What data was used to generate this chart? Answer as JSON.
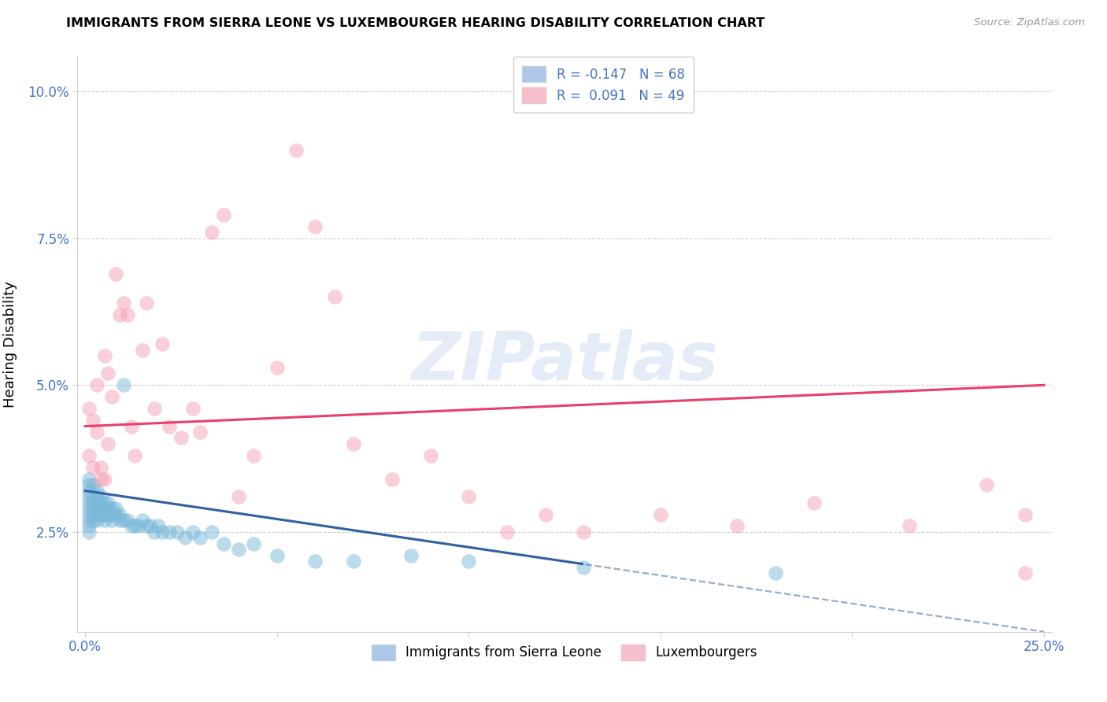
{
  "title": "IMMIGRANTS FROM SIERRA LEONE VS LUXEMBOURGER HEARING DISABILITY CORRELATION CHART",
  "source": "Source: ZipAtlas.com",
  "ylabel": "Hearing Disability",
  "xlim": [
    -0.002,
    0.252
  ],
  "ylim": [
    0.008,
    0.106
  ],
  "yticks": [
    0.025,
    0.05,
    0.075,
    0.1
  ],
  "ytick_labels": [
    "2.5%",
    "5.0%",
    "7.5%",
    "10.0%"
  ],
  "xticks": [
    0.0,
    0.05,
    0.1,
    0.15,
    0.2,
    0.25
  ],
  "xtick_labels": [
    "0.0%",
    "",
    "",
    "",
    "",
    "25.0%"
  ],
  "blue_color": "#7ab8d9",
  "pink_color": "#f4a0b5",
  "blue_line_color": "#3060a0",
  "pink_line_color": "#e8406a",
  "axis_label_color": "#4472c4",
  "r_blue_text": "R = -0.147",
  "n_blue_text": "N = 68",
  "r_pink_text": "R =  0.091",
  "n_pink_text": "N = 49",
  "watermark_text": "ZIPatlas",
  "legend_label_blue": "Immigrants from Sierra Leone",
  "legend_label_pink": "Luxembourgers",
  "blue_line_x0": 0.0,
  "blue_line_y0": 0.032,
  "blue_line_x1": 0.25,
  "blue_line_y1": 0.008,
  "blue_line_solid_end": 0.13,
  "pink_line_x0": 0.0,
  "pink_line_y0": 0.043,
  "pink_line_x1": 0.25,
  "pink_line_y1": 0.05,
  "pink_line_solid_end": 0.25,
  "blue_scatter_x": [
    0.001,
    0.001,
    0.001,
    0.001,
    0.001,
    0.001,
    0.001,
    0.001,
    0.001,
    0.001,
    0.002,
    0.002,
    0.002,
    0.002,
    0.002,
    0.002,
    0.003,
    0.003,
    0.003,
    0.003,
    0.003,
    0.003,
    0.004,
    0.004,
    0.004,
    0.004,
    0.005,
    0.005,
    0.005,
    0.005,
    0.006,
    0.006,
    0.006,
    0.007,
    0.007,
    0.007,
    0.008,
    0.008,
    0.009,
    0.009,
    0.01,
    0.01,
    0.011,
    0.012,
    0.013,
    0.014,
    0.015,
    0.016,
    0.017,
    0.018,
    0.019,
    0.02,
    0.022,
    0.024,
    0.026,
    0.028,
    0.03,
    0.033,
    0.036,
    0.04,
    0.044,
    0.05,
    0.06,
    0.07,
    0.085,
    0.1,
    0.13,
    0.18
  ],
  "blue_scatter_y": [
    0.034,
    0.033,
    0.032,
    0.031,
    0.03,
    0.029,
    0.028,
    0.027,
    0.026,
    0.025,
    0.033,
    0.031,
    0.03,
    0.029,
    0.028,
    0.027,
    0.032,
    0.031,
    0.03,
    0.029,
    0.028,
    0.027,
    0.031,
    0.03,
    0.029,
    0.028,
    0.03,
    0.029,
    0.028,
    0.027,
    0.03,
    0.029,
    0.028,
    0.029,
    0.028,
    0.027,
    0.029,
    0.028,
    0.028,
    0.027,
    0.05,
    0.027,
    0.027,
    0.026,
    0.026,
    0.026,
    0.027,
    0.026,
    0.026,
    0.025,
    0.026,
    0.025,
    0.025,
    0.025,
    0.024,
    0.025,
    0.024,
    0.025,
    0.023,
    0.022,
    0.023,
    0.021,
    0.02,
    0.02,
    0.021,
    0.02,
    0.019,
    0.018
  ],
  "pink_scatter_x": [
    0.001,
    0.001,
    0.002,
    0.002,
    0.003,
    0.003,
    0.004,
    0.004,
    0.005,
    0.005,
    0.006,
    0.006,
    0.007,
    0.008,
    0.009,
    0.01,
    0.011,
    0.012,
    0.013,
    0.015,
    0.016,
    0.018,
    0.02,
    0.022,
    0.025,
    0.028,
    0.03,
    0.033,
    0.036,
    0.04,
    0.044,
    0.05,
    0.055,
    0.06,
    0.065,
    0.07,
    0.08,
    0.09,
    0.1,
    0.11,
    0.12,
    0.13,
    0.15,
    0.17,
    0.19,
    0.215,
    0.235,
    0.245,
    0.245
  ],
  "pink_scatter_y": [
    0.046,
    0.038,
    0.044,
    0.036,
    0.05,
    0.042,
    0.036,
    0.034,
    0.055,
    0.034,
    0.052,
    0.04,
    0.048,
    0.069,
    0.062,
    0.064,
    0.062,
    0.043,
    0.038,
    0.056,
    0.064,
    0.046,
    0.057,
    0.043,
    0.041,
    0.046,
    0.042,
    0.076,
    0.079,
    0.031,
    0.038,
    0.053,
    0.09,
    0.077,
    0.065,
    0.04,
    0.034,
    0.038,
    0.031,
    0.025,
    0.028,
    0.025,
    0.028,
    0.026,
    0.03,
    0.026,
    0.033,
    0.028,
    0.018
  ]
}
